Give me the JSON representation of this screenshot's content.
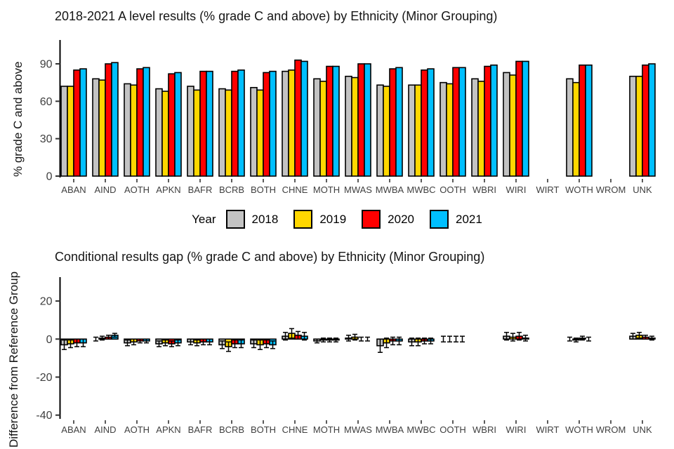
{
  "page": {
    "background": "#ffffff"
  },
  "legend": {
    "title": "Year",
    "items": [
      {
        "label": "2018",
        "color": "#C3C3C3"
      },
      {
        "label": "2019",
        "color": "#FFD700"
      },
      {
        "label": "2020",
        "color": "#FF0000"
      },
      {
        "label": "2021",
        "color": "#00BFFF"
      }
    ]
  },
  "chart_data": [
    {
      "type": "bar",
      "title": "2018-2021 A level results (% grade C and above) by Ethnicity (Minor Grouping)",
      "xlabel": "",
      "ylabel": "% grade C and above",
      "ylim": [
        0,
        110
      ],
      "yticks": [
        90,
        60,
        30,
        0
      ],
      "grid": false,
      "legend_position": "below",
      "categories": [
        "ABAN",
        "AIND",
        "AOTH",
        "APKN",
        "BAFR",
        "BCRB",
        "BOTH",
        "CHNE",
        "MOTH",
        "MWAS",
        "MWBA",
        "MWBC",
        "OOTH",
        "WBRI",
        "WIRI",
        "WIRT",
        "WOTH",
        "WROM",
        "UNK"
      ],
      "series": [
        {
          "name": "2018",
          "color": "#C3C3C3",
          "values": [
            72,
            78,
            74,
            70,
            72,
            70,
            71,
            84,
            78,
            80,
            73,
            73,
            75,
            78,
            83,
            null,
            78,
            null,
            80
          ]
        },
        {
          "name": "2019",
          "color": "#FFD700",
          "values": [
            72,
            77,
            73,
            68,
            69,
            69,
            69,
            85,
            76,
            79,
            72,
            73,
            74,
            76,
            81,
            null,
            75,
            null,
            80
          ]
        },
        {
          "name": "2020",
          "color": "#FF0000",
          "values": [
            85,
            90,
            86,
            82,
            84,
            84,
            83,
            93,
            88,
            90,
            86,
            85,
            87,
            88,
            92,
            null,
            89,
            null,
            89
          ]
        },
        {
          "name": "2021",
          "color": "#00BFFF",
          "values": [
            86,
            91,
            87,
            83,
            84,
            85,
            84,
            92,
            88,
            90,
            87,
            86,
            87,
            89,
            92,
            null,
            89,
            null,
            90
          ]
        }
      ]
    },
    {
      "type": "bar",
      "title": "Conditional results gap (% grade C and above) by Ethnicity (Minor Grouping)",
      "xlabel": "",
      "ylabel": "Difference from Reference Group",
      "ylim": [
        -42,
        32
      ],
      "yticks": [
        20,
        0,
        -20,
        -40
      ],
      "grid": false,
      "categories": [
        "ABAN",
        "AIND",
        "AOTH",
        "APKN",
        "BAFR",
        "BCRB",
        "BOTH",
        "CHNE",
        "MOTH",
        "MWAS",
        "MWBA",
        "MWBC",
        "OOTH",
        "WBRI",
        "WIRI",
        "WIRT",
        "WOTH",
        "WROM",
        "UNK"
      ],
      "series": [
        {
          "name": "2018",
          "color": "#C3C3C3",
          "values": [
            -3,
            0,
            -2,
            -2.5,
            -1.5,
            -3,
            -2.5,
            1.5,
            -1,
            0.5,
            -3.5,
            -1.5,
            0,
            null,
            1.5,
            null,
            0,
            null,
            1.5
          ],
          "errors": [
            2.5,
            1,
            1.5,
            1.5,
            1.5,
            2,
            2,
            2,
            1,
            1.5,
            3.5,
            2,
            1.5,
            null,
            2,
            null,
            1,
            null,
            1.5
          ]
        },
        {
          "name": "2019",
          "color": "#FFD700",
          "values": [
            -2.5,
            0.5,
            -1.5,
            -2,
            -2,
            -4,
            -3,
            3,
            -0.5,
            1,
            -2,
            -1.5,
            0,
            null,
            1,
            null,
            -0.5,
            null,
            2
          ],
          "errors": [
            2,
            1,
            1.5,
            1.5,
            1.5,
            2.5,
            2.5,
            2.5,
            1,
            1.5,
            2.5,
            2,
            1.5,
            null,
            2,
            null,
            1,
            null,
            1.5
          ]
        },
        {
          "name": "2020",
          "color": "#FF0000",
          "values": [
            -2,
            1,
            -1,
            -2.5,
            -1.5,
            -2.5,
            -2.5,
            2,
            -0.5,
            0,
            -1,
            -1,
            0,
            null,
            1.5,
            null,
            0.5,
            null,
            1
          ],
          "errors": [
            2,
            1,
            1,
            1.5,
            1.5,
            2,
            2,
            2,
            1,
            1,
            2,
            1.5,
            1.5,
            null,
            2,
            null,
            1,
            null,
            1
          ]
        },
        {
          "name": "2021",
          "color": "#00BFFF",
          "values": [
            -2,
            2,
            -1,
            -2,
            -1.5,
            -2.5,
            -3,
            1.5,
            -0.5,
            0,
            -1,
            -1,
            0,
            null,
            0.5,
            null,
            0,
            null,
            0.5
          ],
          "errors": [
            2,
            1,
            1,
            1.5,
            1.5,
            2,
            2,
            2,
            1,
            1,
            2,
            1.5,
            1.5,
            null,
            1.5,
            null,
            1,
            null,
            1
          ]
        }
      ]
    }
  ]
}
